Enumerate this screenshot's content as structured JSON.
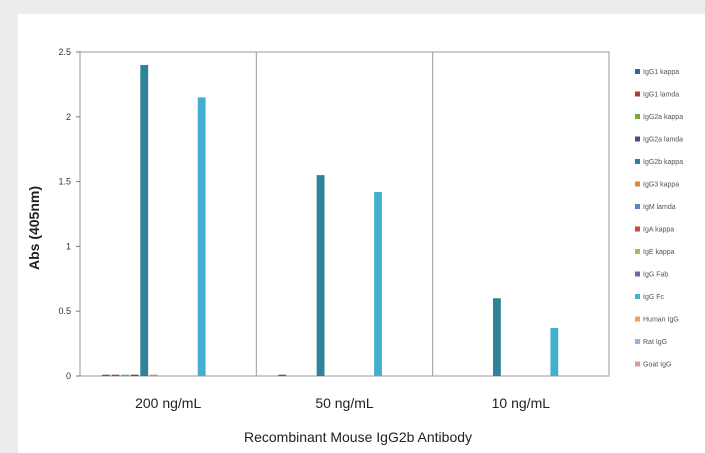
{
  "chart_data": {
    "type": "bar",
    "xlabel": "Recombinant Mouse IgG2b Antibody",
    "ylabel": "Abs (405nm)",
    "ylim": [
      0,
      2.5
    ],
    "yticks": [
      "0",
      "0.5",
      "1",
      "1.5",
      "2",
      "2.5"
    ],
    "categories": [
      "200 ng/mL",
      "50 ng/mL",
      "10 ng/mL"
    ],
    "grid": "vertical separators between categories",
    "legend_position": "right",
    "series": [
      {
        "name": "IgG1 kappa",
        "color": "#3b5ea8",
        "values": [
          0.01,
          0.01,
          0
        ]
      },
      {
        "name": "IgG1 lamda",
        "color": "#b23b3b",
        "values": [
          0.01,
          0,
          0
        ]
      },
      {
        "name": "IgG2a kappa",
        "color": "#7fa83c",
        "values": [
          0.01,
          0,
          0
        ]
      },
      {
        "name": "IgG2a lamda",
        "color": "#5f3f8f",
        "values": [
          0.01,
          0,
          0
        ]
      },
      {
        "name": "IgG2b kappa",
        "color": "#2f8398",
        "values": [
          2.4,
          1.55,
          0.6
        ]
      },
      {
        "name": "IgG3 kappa",
        "color": "#e28833",
        "values": [
          0.01,
          0,
          0
        ]
      },
      {
        "name": "IgM lamda",
        "color": "#5a82c4",
        "values": [
          0,
          0,
          0
        ]
      },
      {
        "name": "IgA kappa",
        "color": "#c84b45",
        "values": [
          0,
          0,
          0
        ]
      },
      {
        "name": "IgE kappa",
        "color": "#9bc25a",
        "values": [
          0,
          0,
          0
        ]
      },
      {
        "name": "IgG Fab",
        "color": "#7e62a8",
        "values": [
          0,
          0,
          0
        ]
      },
      {
        "name": "IgG Fc",
        "color": "#46afd0",
        "values": [
          2.15,
          1.42,
          0.37
        ]
      },
      {
        "name": "Human IgG",
        "color": "#f0a054",
        "values": [
          0,
          0,
          0
        ]
      },
      {
        "name": "Rat IgG",
        "color": "#9cb3dc",
        "values": [
          0,
          0,
          0
        ]
      },
      {
        "name": "Goat IgG",
        "color": "#e09a98",
        "values": [
          0,
          0,
          0
        ]
      }
    ]
  }
}
